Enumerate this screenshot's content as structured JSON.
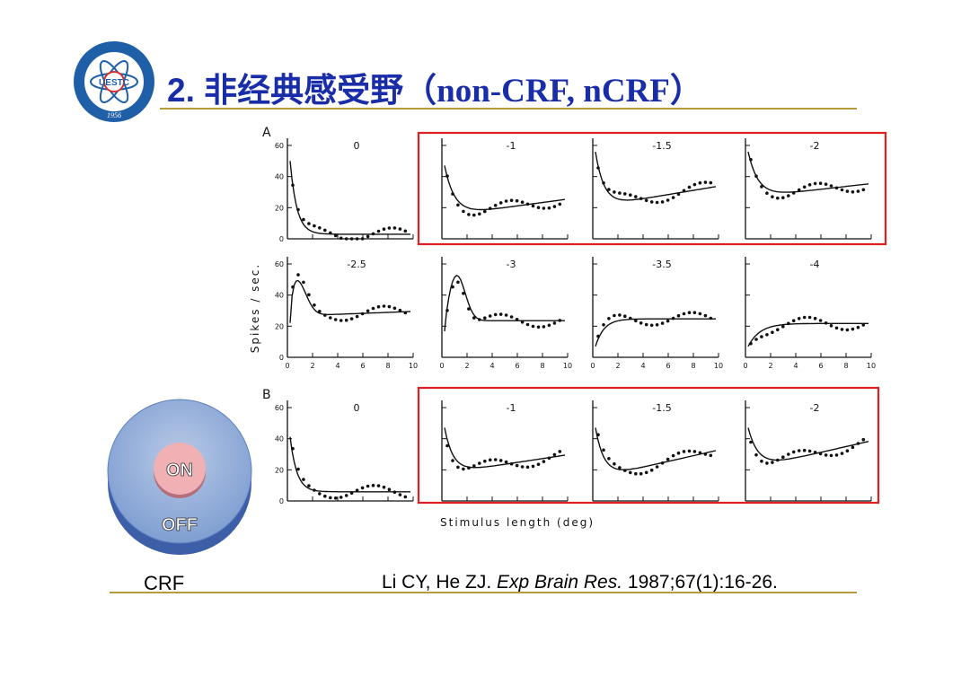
{
  "slide": {
    "title_prefix": "2. 非经典感受野",
    "title_paren": "（non-CRF, nCRF）",
    "crf_label": "CRF",
    "citation": {
      "authors": "Li CY, He ZJ. ",
      "journal": "Exp Brain Res.",
      "details": " 1987;67(1):16-26."
    }
  },
  "logo": {
    "text": "UESTC",
    "year": "1956"
  },
  "crf_diagram": {
    "center_label": "ON",
    "surround_label": "OFF"
  },
  "figure": {
    "panel_a_letter": "A",
    "panel_b_letter": "B",
    "y_axis_label": "Spikes / sec.",
    "x_axis_label": "Stimulus    length (deg)",
    "y_ticks": [
      "0",
      "20",
      "40",
      "60"
    ],
    "x_ticks": [
      "0",
      "2",
      "4",
      "6",
      "8",
      "10"
    ],
    "rows": [
      {
        "group": "A",
        "plots": [
          "0",
          "-1",
          "-1.5",
          "-2"
        ]
      },
      {
        "group": "A",
        "plots": [
          "-2.5",
          "-3",
          "-3.5",
          "-4"
        ]
      },
      {
        "group": "B",
        "plots": [
          "0",
          "-1",
          "-1.5",
          "-2"
        ]
      }
    ]
  },
  "colors": {
    "title": "#1a2da8",
    "rule": "#b59b3a",
    "highlight_box": "#e02020"
  }
}
